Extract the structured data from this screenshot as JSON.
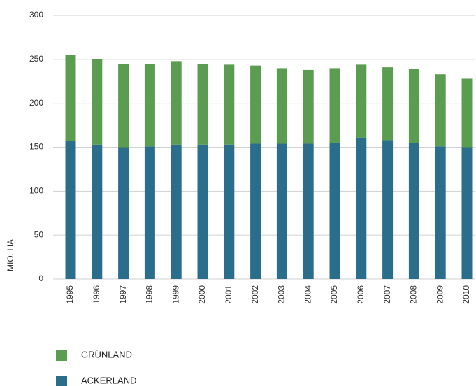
{
  "chart_data": {
    "type": "stacked_bar",
    "y_label": "MIO. HA",
    "categories": [
      "1995",
      "1996",
      "1997",
      "1998",
      "1999",
      "2000",
      "2001",
      "2002",
      "2003",
      "2004",
      "2005",
      "2006",
      "2007",
      "2008",
      "2009",
      "2010"
    ],
    "series": [
      {
        "name": "ACKERLAND",
        "color": "#2b6e8c",
        "values": [
          157,
          153,
          150,
          151,
          153,
          153,
          153,
          154,
          154,
          154,
          155,
          161,
          158,
          155,
          151,
          150
        ]
      },
      {
        "name": "GRÜNLAND",
        "color": "#5b9d50",
        "values": [
          98,
          97,
          95,
          94,
          95,
          92,
          91,
          89,
          86,
          84,
          85,
          83,
          83,
          84,
          82,
          78
        ]
      }
    ],
    "ylim": [
      0,
      300
    ],
    "yticks": [
      0,
      50,
      100,
      150,
      200,
      250,
      300
    ],
    "grid": true
  }
}
